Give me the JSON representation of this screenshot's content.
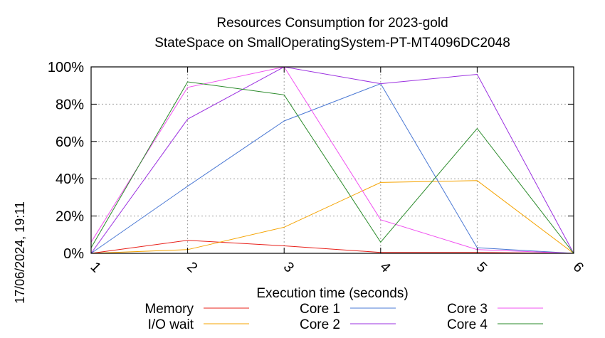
{
  "chart_data": {
    "type": "line",
    "title": "Resources Consumption for 2023-gold",
    "subtitle": "StateSpace on SmallOperatingSystem-PT-MT4096DC2048",
    "xlabel": "Execution time (seconds)",
    "ylabel": "",
    "x": [
      1,
      2,
      3,
      4,
      5,
      6
    ],
    "xlim": [
      1,
      6
    ],
    "ylim": [
      0,
      100
    ],
    "x_ticks": [
      "1",
      "2",
      "3",
      "4",
      "5",
      "6"
    ],
    "y_ticks": [
      "0%",
      "20%",
      "40%",
      "60%",
      "80%",
      "100%"
    ],
    "grid": true,
    "legend_position": "bottom",
    "timestamp": "17/06/2024, 19:11",
    "series": [
      {
        "name": "Memory",
        "color": "#e8201a",
        "values": [
          0,
          7,
          4,
          0.5,
          0.5,
          0
        ]
      },
      {
        "name": "I/O wait",
        "color": "#f5a300",
        "values": [
          0,
          2,
          14,
          38,
          39,
          0
        ]
      },
      {
        "name": "Core 1",
        "color": "#4a78d4",
        "values": [
          0,
          36,
          71,
          91,
          3,
          0
        ]
      },
      {
        "name": "Core 2",
        "color": "#9b30e0",
        "values": [
          0,
          72,
          100,
          91,
          96,
          0
        ]
      },
      {
        "name": "Core 3",
        "color": "#f050f0",
        "values": [
          6,
          89,
          100,
          18,
          2,
          0
        ]
      },
      {
        "name": "Core 4",
        "color": "#2a8a2a",
        "values": [
          3,
          92,
          85,
          6,
          67,
          0
        ]
      }
    ]
  }
}
